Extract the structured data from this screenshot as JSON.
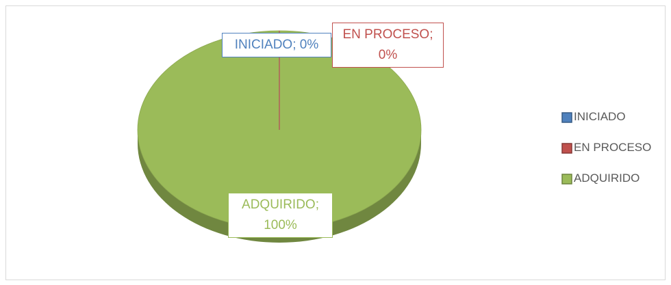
{
  "chart_data": {
    "type": "pie",
    "three_d": true,
    "categories": [
      "INICIADO",
      "EN PROCESO",
      "ADQUIRIDO"
    ],
    "values": [
      0,
      0,
      100
    ],
    "value_labels": [
      "INICIADO; 0%",
      "EN PROCESO; 0%",
      "ADQUIRIDO; 100%"
    ],
    "colors": [
      "#4f81bd",
      "#c0504d",
      "#9bbb59"
    ],
    "legend": "right"
  }
}
